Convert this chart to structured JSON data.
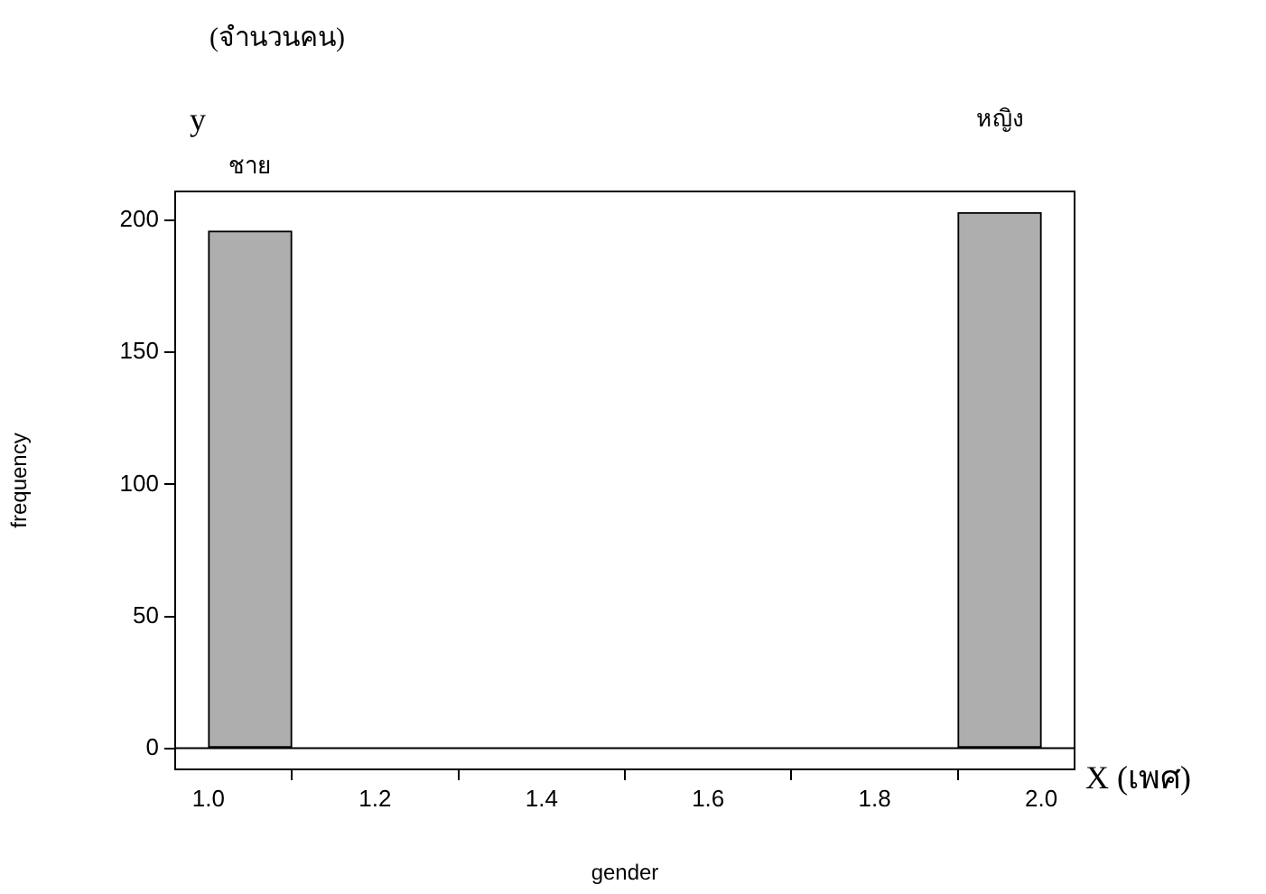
{
  "chart_data": {
    "type": "histogram",
    "title": "(จำนวนคน)",
    "xlabel": "gender",
    "ylabel": "frequency",
    "bins": [
      1.0,
      1.1,
      1.2,
      1.3,
      1.4,
      1.5,
      1.6,
      1.7,
      1.8,
      1.9,
      2.0
    ],
    "values": [
      196,
      0,
      0,
      0,
      0,
      0,
      0,
      0,
      0,
      203
    ],
    "color": "#aeaeae",
    "xlim": [
      0.96,
      2.04
    ],
    "xticks": [
      {
        "value": 1,
        "label": "1.0"
      },
      {
        "value": 1.2,
        "label": "1.2"
      },
      {
        "value": 1.4,
        "label": "1.4"
      },
      {
        "value": 1.6,
        "label": "1.6"
      },
      {
        "value": 1.8,
        "label": "1.8"
      },
      {
        "value": 2,
        "label": "2.0"
      }
    ],
    "ylim": [
      -8,
      211
    ],
    "yticks": [
      0,
      50,
      100,
      150,
      200
    ],
    "ref_lines": [
      {
        "axis": "y",
        "value": 0
      }
    ],
    "annotations": [
      "y",
      "X (เพศ)",
      "ชาย",
      "หญิง"
    ],
    "grid": false,
    "legend": false
  }
}
